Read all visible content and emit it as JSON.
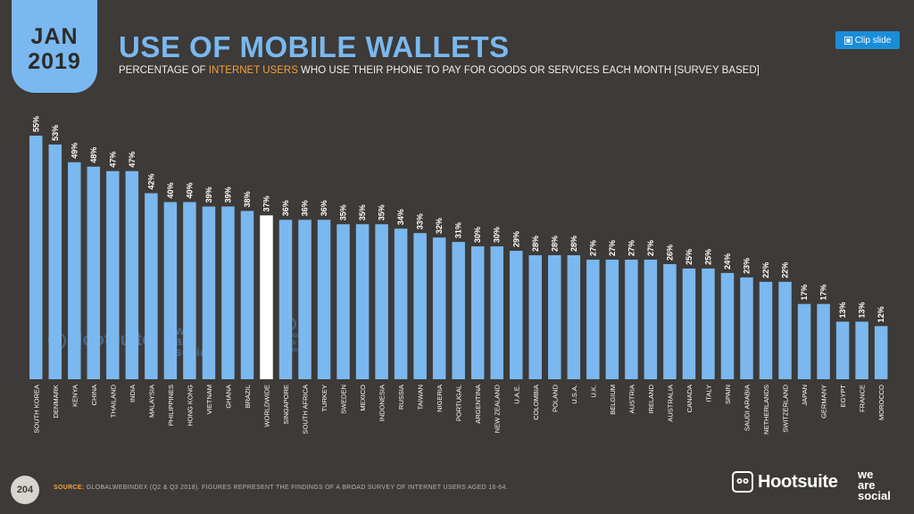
{
  "header": {
    "date_month": "JAN",
    "date_year": "2019",
    "title": "USE OF MOBILE WALLETS",
    "subtitle_before": "PERCENTAGE OF ",
    "subtitle_highlight": "INTERNET USERS",
    "subtitle_after": " WHO USE THEIR PHONE TO PAY FOR GOODS OR SERVICES EACH MONTH [SURVEY BASED]",
    "clip_button_label": "Clip slide"
  },
  "footer": {
    "page_number": "204",
    "source_label": "SOURCE:",
    "source_text": " GLOBALWEBINDEX (Q2 & Q3 2018). FIGURES REPRESENT THE FINDINGS OF A BROAD SURVEY OF INTERNET USERS AGED 16-64.",
    "hootsuite_logo_text": "Hootsuite",
    "we_are_social_logo": [
      "we",
      "are",
      "social"
    ]
  },
  "watermarks": {
    "hootsuite": "Hootsuite",
    "we_are_social": [
      "we",
      "are",
      "social"
    ],
    "gwi_lines": [
      "global",
      "web",
      "index"
    ]
  },
  "colors": {
    "background": "#3d3a37",
    "bar": "#7ab8ef",
    "highlight_bar": "#ffffff",
    "accent": "#f4a23c",
    "clip_button": "#1a8dd8"
  },
  "chart_data": {
    "type": "bar",
    "categories": [
      "SOUTH KOREA",
      "DENMARK",
      "KENYA",
      "CHINA",
      "THAILAND",
      "INDIA",
      "MALAYSIA",
      "PHILIPPINES",
      "HONG KONG",
      "VIETNAM",
      "GHANA",
      "BRAZIL",
      "WORLDWIDE",
      "SINGAPORE",
      "SOUTH AFRICA",
      "TURKEY",
      "SWEDEN",
      "MEXICO",
      "INDONESIA",
      "RUSSIA",
      "TAIWAN",
      "NIGERIA",
      "PORTUGAL",
      "ARGENTINA",
      "NEW ZEALAND",
      "U.A.E.",
      "COLOMBIA",
      "POLAND",
      "U.S.A.",
      "U.K.",
      "BELGIUM",
      "AUSTRIA",
      "IRELAND",
      "AUSTRALIA",
      "CANADA",
      "ITALY",
      "SPAIN",
      "SAUDI ARABIA",
      "NETHERLANDS",
      "SWITZERLAND",
      "JAPAN",
      "GERMANY",
      "EGYPT",
      "FRANCE",
      "MOROCCO"
    ],
    "values": [
      55,
      53,
      49,
      48,
      47,
      47,
      42,
      40,
      40,
      39,
      39,
      38,
      37,
      36,
      36,
      36,
      35,
      35,
      35,
      34,
      33,
      32,
      31,
      30,
      30,
      29,
      28,
      28,
      28,
      27,
      27,
      27,
      27,
      26,
      25,
      25,
      24,
      23,
      22,
      22,
      17,
      17,
      13,
      13,
      12
    ],
    "value_labels": [
      "55%",
      "53%",
      "49%",
      "48%",
      "47%",
      "47%",
      "42%",
      "40%",
      "40%",
      "39%",
      "39%",
      "38%",
      "37%",
      "36%",
      "36%",
      "36%",
      "35%",
      "35%",
      "35%",
      "34%",
      "33%",
      "32%",
      "31%",
      "30%",
      "30%",
      "29%",
      "28%",
      "28%",
      "28%",
      "27%",
      "27%",
      "27%",
      "27%",
      "26%",
      "25%",
      "25%",
      "24%",
      "23%",
      "22%",
      "22%",
      "17%",
      "17%",
      "13%",
      "13%",
      "12%"
    ],
    "highlight_category": "WORLDWIDE",
    "ylim": [
      0,
      55
    ],
    "grid": false,
    "legend": "none"
  }
}
